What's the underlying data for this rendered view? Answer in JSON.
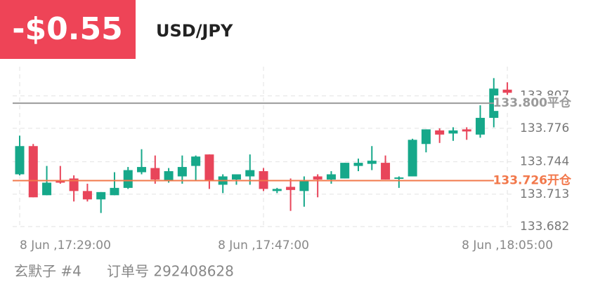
{
  "header": {
    "amount": "-$0.55",
    "symbol": "USD/JPY"
  },
  "chart_data": {
    "type": "candlestick",
    "categories": [
      "8 Jun ,17:29:00",
      null,
      null,
      null,
      null,
      null,
      null,
      null,
      null,
      null,
      null,
      null,
      null,
      null,
      null,
      null,
      null,
      null,
      "8 Jun ,17:47:00",
      null,
      null,
      null,
      null,
      null,
      null,
      null,
      null,
      null,
      null,
      null,
      null,
      null,
      null,
      null,
      null,
      null,
      "8 Jun ,18:05:00"
    ],
    "open": [
      133.732,
      133.759,
      133.712,
      133.726,
      133.728,
      133.716,
      133.708,
      133.712,
      133.719,
      133.734,
      133.738,
      133.726,
      133.73,
      133.74,
      133.751,
      133.722,
      133.727,
      133.73,
      133.735,
      133.716,
      133.72,
      133.716,
      133.73,
      133.727,
      133.728,
      133.74,
      133.742,
      133.743,
      133.728,
      133.73,
      133.761,
      133.774,
      133.771,
      133.775,
      133.77,
      133.786,
      133.813
    ],
    "high": [
      133.769,
      133.761,
      133.74,
      133.74,
      133.731,
      133.723,
      133.715,
      133.734,
      133.739,
      133.756,
      133.75,
      133.738,
      133.75,
      133.75,
      133.751,
      133.732,
      133.732,
      133.751,
      133.738,
      133.719,
      133.728,
      133.73,
      133.732,
      133.735,
      133.743,
      133.747,
      133.759,
      133.75,
      133.73,
      133.766,
      133.775,
      133.776,
      133.777,
      133.777,
      133.798,
      133.824,
      133.82
    ],
    "low": [
      133.731,
      133.71,
      133.712,
      133.723,
      133.706,
      133.706,
      133.695,
      133.712,
      133.718,
      133.732,
      133.723,
      133.724,
      133.723,
      133.726,
      133.718,
      133.714,
      133.722,
      133.722,
      133.716,
      133.714,
      133.697,
      133.701,
      133.71,
      133.723,
      133.728,
      133.735,
      133.736,
      133.727,
      133.719,
      133.73,
      133.753,
      133.762,
      133.764,
      133.765,
      133.767,
      133.777,
      133.808
    ],
    "close": [
      133.759,
      133.71,
      133.724,
      133.724,
      133.716,
      133.708,
      133.715,
      133.719,
      133.736,
      133.739,
      133.727,
      133.735,
      133.739,
      133.749,
      133.726,
      133.73,
      133.732,
      133.736,
      133.718,
      133.718,
      133.717,
      133.726,
      133.727,
      133.732,
      133.743,
      133.743,
      133.745,
      133.727,
      133.729,
      133.765,
      133.775,
      133.77,
      133.774,
      133.773,
      133.786,
      133.814,
      133.81
    ],
    "up_color": "#16a88a",
    "down_color": "#e8455a",
    "ylim": [
      133.68,
      133.835
    ],
    "yticks": [
      133.682,
      133.713,
      133.744,
      133.776,
      133.807
    ],
    "grid": true,
    "reference_lines": [
      {
        "value": 133.8,
        "label": "133.800平仓",
        "color": "#9a9a9a"
      },
      {
        "value": 133.726,
        "label": "133.726开仓",
        "color": "#f2784b"
      }
    ]
  },
  "footer": {
    "account": "玄默子 #4",
    "order": "订单号 292408628"
  }
}
